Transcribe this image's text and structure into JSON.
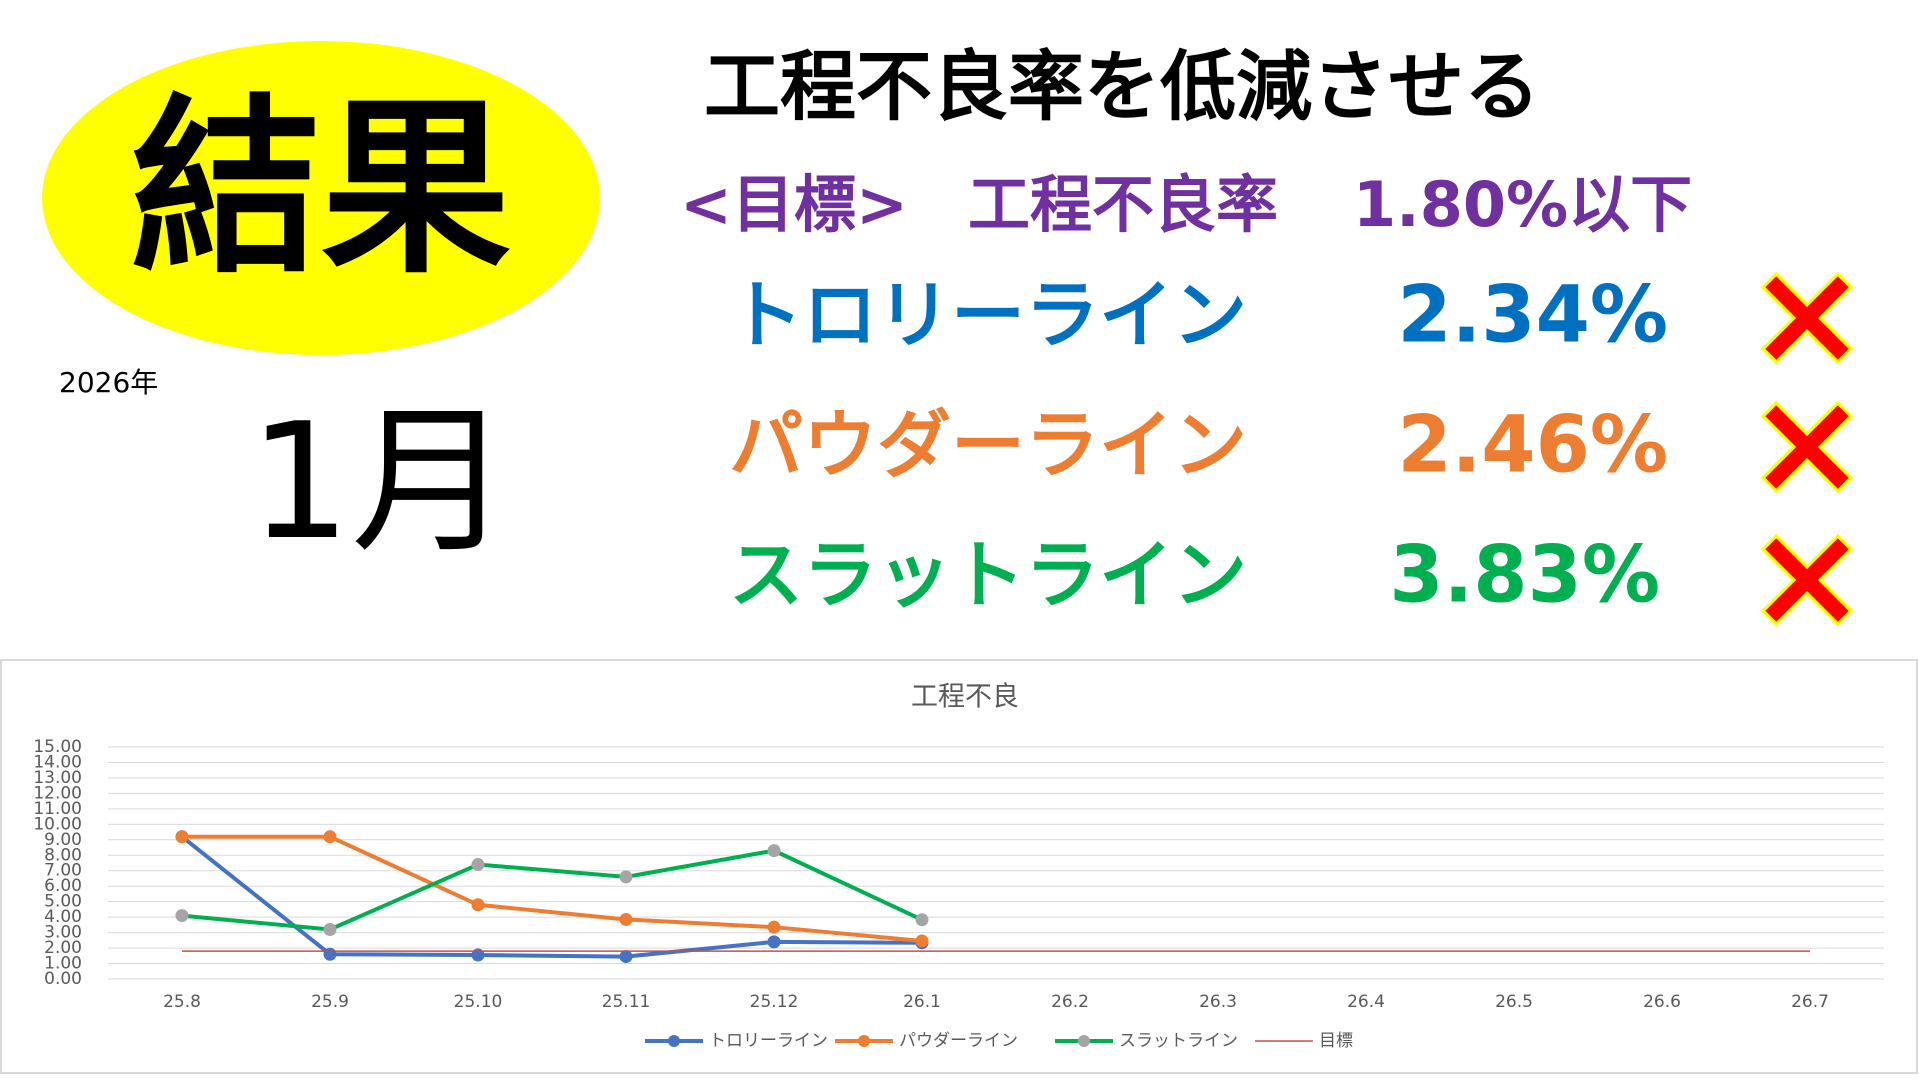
{
  "header": {
    "badge": "結果",
    "year": "2026年",
    "month": "1月",
    "title": "工程不良率を低減させる",
    "target": {
      "label": "<目標>",
      "metric": "工程不良率",
      "value": "1.80%以下"
    },
    "lines": [
      {
        "name": "トロリーライン",
        "value": "2.34%",
        "color": "#0070c0"
      },
      {
        "name": "パウダーライン",
        "value": "2.46%",
        "color": "#ed7d31"
      },
      {
        "name": "スラットライン",
        "value": "3.83%",
        "color": "#00b050"
      }
    ]
  },
  "chart_data": {
    "type": "line",
    "title": "工程不良",
    "categories": [
      "25.8",
      "25.9",
      "25.10",
      "25.11",
      "25.12",
      "26.1",
      "26.2",
      "26.3",
      "26.4",
      "26.5",
      "26.6",
      "26.7"
    ],
    "series": [
      {
        "name": "トロリーライン",
        "color": "#4472c4",
        "marker_color": "#4472c4",
        "values": [
          9.2,
          1.6,
          1.55,
          1.45,
          2.4,
          2.34,
          null,
          null,
          null,
          null,
          null,
          null
        ]
      },
      {
        "name": "パウダーライン",
        "color": "#ed7d31",
        "marker_color": "#ed7d31",
        "values": [
          9.2,
          9.2,
          4.8,
          3.85,
          3.35,
          2.46,
          null,
          null,
          null,
          null,
          null,
          null
        ]
      },
      {
        "name": "スラットライン",
        "color": "#00b050",
        "marker_color": "#a5a5a5",
        "values": [
          4.1,
          3.2,
          7.4,
          6.6,
          8.3,
          3.83,
          null,
          null,
          null,
          null,
          null,
          null
        ]
      },
      {
        "name": "目標",
        "color": "#c0504d",
        "markers": false,
        "values": [
          1.8,
          1.8,
          1.8,
          1.8,
          1.8,
          1.8,
          1.8,
          1.8,
          1.8,
          1.8,
          1.8,
          1.8
        ]
      }
    ],
    "ylim": [
      0,
      15
    ],
    "yticks": [
      {
        "value": 0,
        "label": "0.00"
      },
      {
        "value": 1,
        "label": "1.00"
      },
      {
        "value": 2,
        "label": "2.00"
      },
      {
        "value": 3,
        "label": "3.00"
      },
      {
        "value": 4,
        "label": "4.00"
      },
      {
        "value": 5,
        "label": "5.00"
      },
      {
        "value": 6,
        "label": "6.00"
      },
      {
        "value": 7,
        "label": "7.00"
      },
      {
        "value": 8,
        "label": "8.00"
      },
      {
        "value": 9,
        "label": "9.00"
      },
      {
        "value": 10,
        "label": "10.00"
      },
      {
        "value": 11,
        "label": "11.00"
      },
      {
        "value": 12,
        "label": "12.00"
      },
      {
        "value": 13,
        "label": "13.00"
      },
      {
        "value": 14,
        "label": "14.00"
      },
      {
        "value": 15,
        "label": "15.00"
      }
    ],
    "grid": true,
    "legend": "bottom"
  }
}
